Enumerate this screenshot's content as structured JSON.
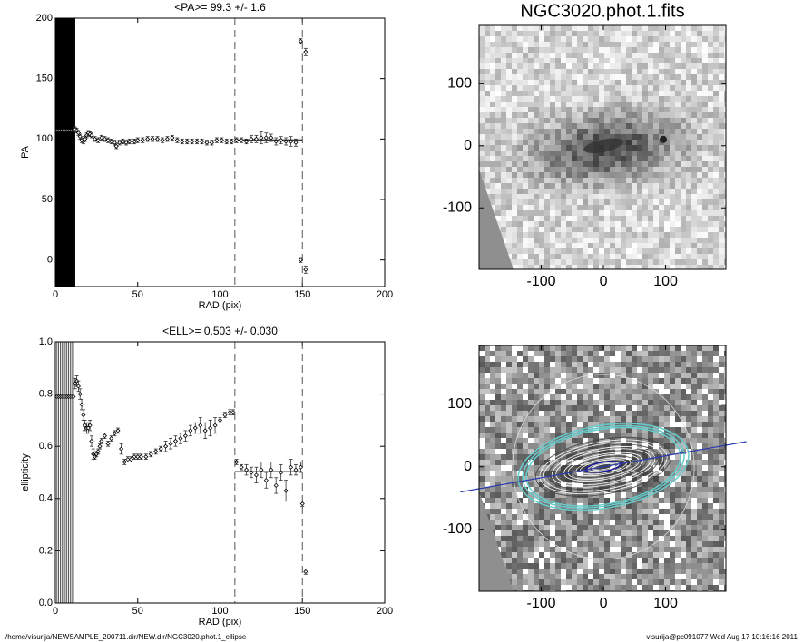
{
  "chart_data": [
    {
      "type": "scatter",
      "title": "<PA>=  99.3 +/-   1.6",
      "x_label": "RAD (pix)",
      "y_label": "PA",
      "xlim": [
        0,
        200
      ],
      "ylim": [
        -22,
        200
      ],
      "xticks": [
        0,
        50,
        100,
        150,
        200
      ],
      "yticks": [
        0,
        50,
        100,
        150,
        200
      ],
      "x": [
        0,
        1,
        2,
        3,
        4,
        5,
        6,
        7,
        8,
        9,
        10,
        11,
        12,
        13,
        14,
        15,
        16,
        17,
        18,
        19,
        20,
        21,
        22,
        24,
        26,
        28,
        30,
        32,
        34,
        36,
        37,
        39,
        41,
        43,
        45,
        48,
        50,
        53,
        56,
        59,
        62,
        65,
        68,
        71,
        74,
        77,
        80,
        83,
        86,
        89,
        92,
        95,
        98,
        101,
        104,
        107,
        110,
        113,
        116,
        119,
        122,
        125,
        128,
        131,
        134,
        137,
        140,
        143,
        146,
        149,
        149,
        152,
        152
      ],
      "values": [
        107,
        107,
        107,
        107,
        107,
        107,
        107,
        107,
        107,
        107,
        107,
        107,
        108,
        107,
        105,
        102,
        99,
        98,
        100,
        103,
        105,
        104,
        103,
        100,
        99,
        101,
        100,
        99,
        98,
        97,
        94,
        97,
        98,
        97,
        98,
        98,
        99,
        99,
        100,
        100,
        100,
        99,
        100,
        101,
        99,
        98,
        98,
        98,
        98,
        98,
        97,
        97,
        99,
        99,
        98,
        98,
        99,
        99,
        98,
        100,
        100,
        101,
        101,
        101,
        98,
        99,
        98,
        98,
        97,
        181,
        0,
        172,
        -8
      ],
      "errors": [
        400,
        400,
        400,
        400,
        400,
        400,
        400,
        400,
        400,
        400,
        400,
        400,
        2,
        2,
        2,
        2,
        2,
        2,
        2,
        2,
        2,
        2,
        2,
        2,
        2,
        2,
        2,
        2,
        2,
        2,
        2,
        2,
        2,
        2,
        2,
        2,
        2,
        2,
        2,
        2,
        2,
        2,
        2,
        2,
        2,
        2,
        2,
        2,
        2,
        2,
        2,
        2,
        2,
        2,
        2,
        2,
        2,
        2,
        2,
        3,
        3,
        5,
        4,
        3,
        3,
        3,
        3,
        4,
        3,
        2,
        2,
        3,
        3
      ],
      "dashed_x": [
        109,
        150
      ],
      "mean": {
        "value": 99.3,
        "from": 109,
        "to": 150
      }
    },
    {
      "type": "scatter",
      "title": "<ELL>= 0.503 +/-  0.030",
      "x_label": "RAD (pix)",
      "y_label": "ellipticity",
      "xlim": [
        0,
        200
      ],
      "ylim": [
        0,
        1
      ],
      "xticks": [
        0,
        50,
        100,
        150,
        200
      ],
      "yticks": [
        {
          "value": 0,
          "label": "0.0"
        },
        0.2,
        0.4,
        0.6,
        0.8,
        {
          "value": 1,
          "label": "1.0"
        }
      ],
      "x": [
        0,
        1,
        2,
        3,
        4,
        5,
        6,
        7,
        8,
        9,
        10,
        11,
        12,
        13,
        14,
        15,
        16,
        17,
        18,
        19,
        20,
        21,
        22,
        23,
        24,
        25,
        26,
        27,
        28,
        30,
        32,
        34,
        36,
        38,
        40,
        42,
        44,
        46,
        48,
        50,
        52,
        55,
        58,
        61,
        64,
        67,
        70,
        73,
        76,
        79,
        82,
        85,
        88,
        91,
        94,
        97,
        100,
        103,
        106,
        108,
        110,
        113,
        116,
        119,
        122,
        125,
        128,
        131,
        134,
        137,
        140,
        143,
        146,
        149,
        150,
        152
      ],
      "values": [
        0.79,
        0.79,
        0.79,
        0.79,
        0.79,
        0.79,
        0.79,
        0.79,
        0.79,
        0.79,
        0.79,
        0.79,
        0.84,
        0.85,
        0.83,
        0.8,
        0.76,
        0.72,
        0.68,
        0.67,
        0.67,
        0.68,
        0.62,
        0.57,
        0.56,
        0.57,
        0.58,
        0.6,
        0.62,
        0.64,
        0.61,
        0.63,
        0.65,
        0.66,
        0.59,
        0.54,
        0.55,
        0.55,
        0.56,
        0.56,
        0.56,
        0.56,
        0.57,
        0.58,
        0.59,
        0.6,
        0.61,
        0.62,
        0.63,
        0.64,
        0.66,
        0.67,
        0.68,
        0.66,
        0.67,
        0.68,
        0.7,
        0.72,
        0.73,
        0.73,
        0.54,
        0.52,
        0.51,
        0.5,
        0.49,
        0.51,
        0.47,
        0.51,
        0.45,
        0.5,
        0.43,
        0.52,
        0.51,
        0.52,
        0.38,
        0.12
      ],
      "errors": [
        1,
        1,
        1,
        1,
        1,
        1,
        1,
        1,
        1,
        1,
        1,
        1,
        0.02,
        0.02,
        0.02,
        0.02,
        0.02,
        0.02,
        0.02,
        0.02,
        0.02,
        0.02,
        0.02,
        0.02,
        0.01,
        0.01,
        0.01,
        0.01,
        0.01,
        0.01,
        0.01,
        0.01,
        0.01,
        0.01,
        0.02,
        0.01,
        0.01,
        0.01,
        0.01,
        0.01,
        0.01,
        0.01,
        0.01,
        0.01,
        0.01,
        0.02,
        0.02,
        0.02,
        0.02,
        0.02,
        0.02,
        0.02,
        0.03,
        0.03,
        0.03,
        0.03,
        0.01,
        0.01,
        0.01,
        0.01,
        0.01,
        0.01,
        0.02,
        0.02,
        0.03,
        0.03,
        0.03,
        0.03,
        0.03,
        0.03,
        0.04,
        0.03,
        0.02,
        0.02,
        0.01,
        0.01
      ],
      "dashed_x": [
        109,
        150
      ],
      "mean": {
        "value": 0.503,
        "from": 109,
        "to": 150
      }
    },
    {
      "type": "image",
      "title": "NGC3020.phot.1.fits",
      "xlim": [
        -200,
        197
      ],
      "ylim": [
        -199,
        194
      ],
      "xticks": [
        -100,
        0,
        100
      ],
      "yticks": [
        -100,
        0,
        100
      ],
      "overlay": false
    },
    {
      "type": "image",
      "xlim": [
        -200,
        197
      ],
      "ylim": [
        -199,
        194
      ],
      "xticks": [
        -100,
        0,
        100
      ],
      "yticks": [
        -100,
        0,
        100
      ],
      "overlay": true
    }
  ],
  "footer": {
    "path": "/home/visurija/NEWSAMPLE_200711.dir/NEW.dir/NGC3020.phot.1_ellipse",
    "stamp": "visurija@pc091077  Wed Aug 17 10:16:16 2011"
  }
}
